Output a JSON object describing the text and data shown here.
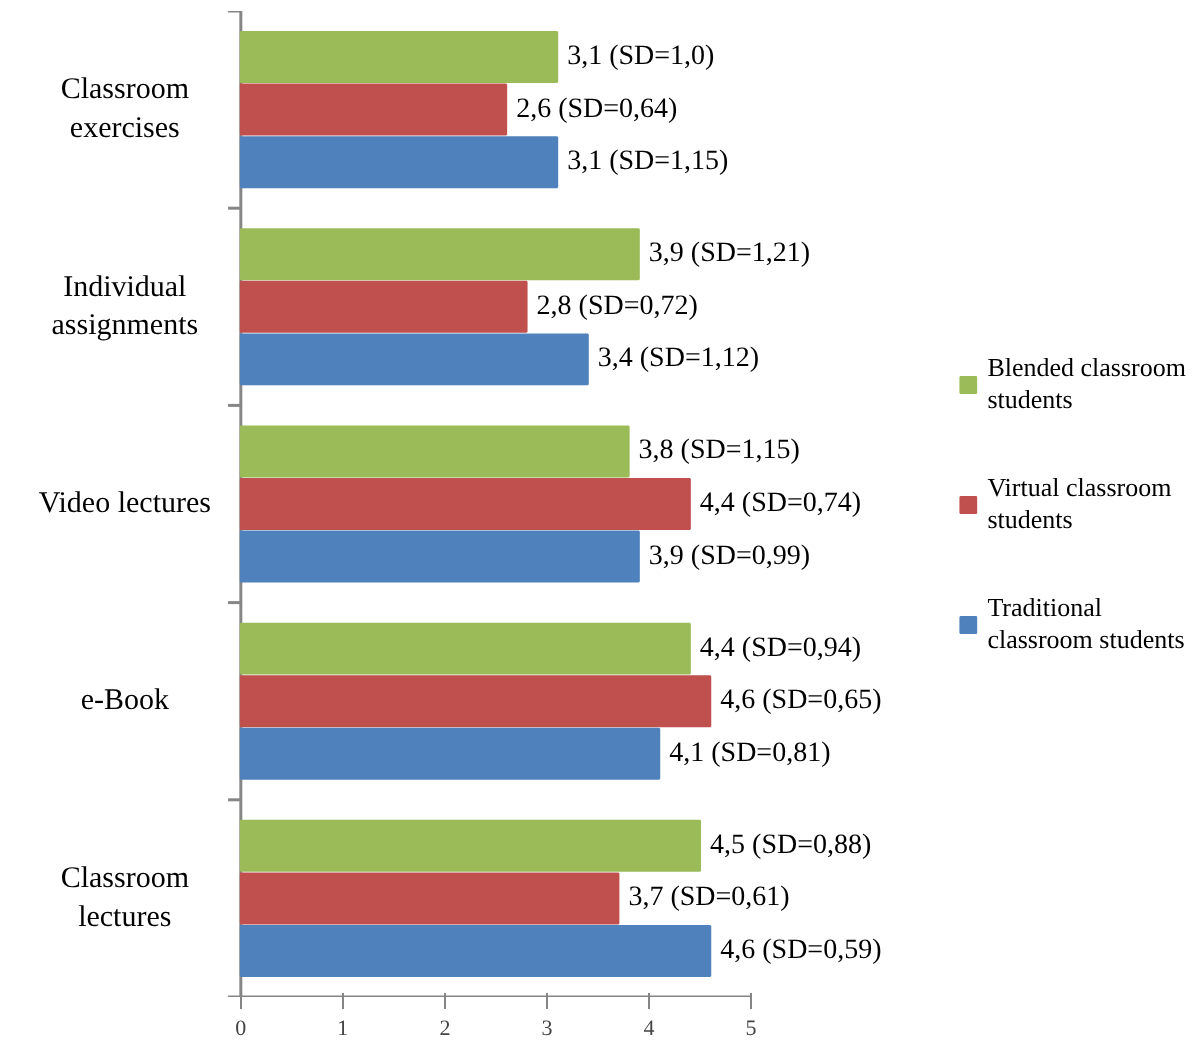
{
  "chart_data": {
    "type": "bar",
    "orientation": "horizontal",
    "categories": [
      "Classroom\nexercises",
      "Individual\nassignments",
      "Video lectures",
      "e-Book",
      "Classroom\nlectures"
    ],
    "series": [
      {
        "name": "Blended classroom students",
        "color": "#9bbb59",
        "values": [
          3.1,
          3.9,
          3.8,
          4.4,
          4.5
        ],
        "value_labels": [
          "3,1   (SD=1,0)",
          "3,9   (SD=1,21)",
          "3,8   (SD=1,15)",
          "4,4   (SD=0,94)",
          "4,5   (SD=0,88)"
        ]
      },
      {
        "name": "Virtual classroom students",
        "color": "#c0504d",
        "values": [
          2.6,
          2.8,
          4.4,
          4.6,
          3.7
        ],
        "value_labels": [
          "2,6   (SD=0,64)",
          "2,8   (SD=0,72)",
          "4,4   (SD=0,74)",
          "4,6   (SD=0,65)",
          "3,7   (SD=0,61)"
        ]
      },
      {
        "name": "Traditional classroom students",
        "color": "#4f81bd",
        "values": [
          3.1,
          3.4,
          3.9,
          4.1,
          4.6
        ],
        "value_labels": [
          "3,1   (SD=1,15)",
          "3,4   (SD=1,12)",
          "3,9   (SD=0,99)",
          "4,1   (SD=0,81)",
          "4,6   (SD=0,59)"
        ]
      }
    ],
    "xlim": [
      0,
      5
    ],
    "xticks": [
      0,
      1,
      2,
      3,
      4,
      5
    ],
    "grid": false,
    "legend": "right"
  }
}
